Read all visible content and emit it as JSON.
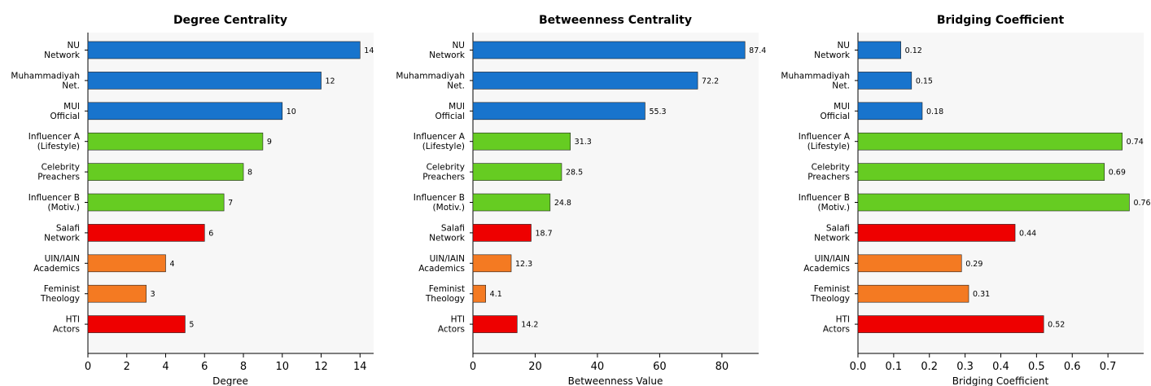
{
  "colors": {
    "blue": "#1874CD",
    "green": "#66CC22",
    "red": "#EE0000",
    "orange": "#F47A22",
    "plot_bg": "#F7F7F7"
  },
  "chart_data": [
    {
      "type": "bar",
      "orientation": "horizontal",
      "title": "Degree Centrality",
      "xlabel": "Degree",
      "ylabel": "",
      "xlim": [
        0,
        14.7
      ],
      "xticks": [
        0,
        2,
        4,
        6,
        8,
        10,
        12,
        14
      ],
      "tick_labels": [
        "0",
        "2",
        "4",
        "6",
        "8",
        "10",
        "12",
        "14"
      ],
      "categories": [
        [
          "NU",
          "Network"
        ],
        [
          "Muhammadiyah",
          "Net."
        ],
        [
          "MUI",
          "Official"
        ],
        [
          "Influencer A",
          "(Lifestyle)"
        ],
        [
          "Celebrity",
          "Preachers"
        ],
        [
          "Influencer B",
          "(Motiv.)"
        ],
        [
          "Salafi",
          "Network"
        ],
        [
          "UIN/IAIN",
          "Academics"
        ],
        [
          "Feminist",
          "Theology"
        ],
        [
          "HTI",
          "Actors"
        ]
      ],
      "values": [
        14,
        12,
        10,
        9,
        8,
        7,
        6,
        4,
        3,
        5
      ],
      "value_labels": [
        "14",
        "12",
        "10",
        "9",
        "8",
        "7",
        "6",
        "4",
        "3",
        "5"
      ],
      "bar_colors": [
        "blue",
        "blue",
        "blue",
        "green",
        "green",
        "green",
        "red",
        "orange",
        "orange",
        "red"
      ],
      "grid": false,
      "legend": "none"
    },
    {
      "type": "bar",
      "orientation": "horizontal",
      "title": "Betweenness Centrality",
      "xlabel": "Betweenness Value",
      "ylabel": "",
      "xlim": [
        0,
        91.8
      ],
      "xticks": [
        0,
        20,
        40,
        60,
        80
      ],
      "tick_labels": [
        "0",
        "20",
        "40",
        "60",
        "80"
      ],
      "categories": [
        [
          "NU",
          "Network"
        ],
        [
          "Muhammadiyah",
          "Net."
        ],
        [
          "MUI",
          "Official"
        ],
        [
          "Influencer A",
          "(Lifestyle)"
        ],
        [
          "Celebrity",
          "Preachers"
        ],
        [
          "Influencer B",
          "(Motiv.)"
        ],
        [
          "Salafi",
          "Network"
        ],
        [
          "UIN/IAIN",
          "Academics"
        ],
        [
          "Feminist",
          "Theology"
        ],
        [
          "HTI",
          "Actors"
        ]
      ],
      "values": [
        87.4,
        72.2,
        55.3,
        31.3,
        28.5,
        24.8,
        18.7,
        12.3,
        4.1,
        14.2
      ],
      "value_labels": [
        "87.4",
        "72.2",
        "55.3",
        "31.3",
        "28.5",
        "24.8",
        "18.7",
        "12.3",
        "4.1",
        "14.2"
      ],
      "bar_colors": [
        "blue",
        "blue",
        "blue",
        "green",
        "green",
        "green",
        "red",
        "orange",
        "orange",
        "red"
      ],
      "grid": false,
      "legend": "none"
    },
    {
      "type": "bar",
      "orientation": "horizontal",
      "title": "Bridging Coefficient",
      "xlabel": "Bridging Coefficient",
      "ylabel": "",
      "xlim": [
        0,
        0.8
      ],
      "xticks": [
        0,
        0.1,
        0.2,
        0.3,
        0.4,
        0.5,
        0.6,
        0.7
      ],
      "tick_labels": [
        "0.0",
        "0.1",
        "0.2",
        "0.3",
        "0.4",
        "0.5",
        "0.6",
        "0.7"
      ],
      "categories": [
        [
          "NU",
          "Network"
        ],
        [
          "Muhammadiyah",
          "Net."
        ],
        [
          "MUI",
          "Official"
        ],
        [
          "Influencer A",
          "(Lifestyle)"
        ],
        [
          "Celebrity",
          "Preachers"
        ],
        [
          "Influencer B",
          "(Motiv.)"
        ],
        [
          "Salafi",
          "Network"
        ],
        [
          "UIN/IAIN",
          "Academics"
        ],
        [
          "Feminist",
          "Theology"
        ],
        [
          "HTI",
          "Actors"
        ]
      ],
      "values": [
        0.12,
        0.15,
        0.18,
        0.74,
        0.69,
        0.76,
        0.44,
        0.29,
        0.31,
        0.52
      ],
      "value_labels": [
        "0.12",
        "0.15",
        "0.18",
        "0.74",
        "0.69",
        "0.76",
        "0.44",
        "0.29",
        "0.31",
        "0.52"
      ],
      "bar_colors": [
        "blue",
        "blue",
        "blue",
        "green",
        "green",
        "green",
        "red",
        "orange",
        "orange",
        "red"
      ],
      "grid": false,
      "legend": "none"
    }
  ]
}
